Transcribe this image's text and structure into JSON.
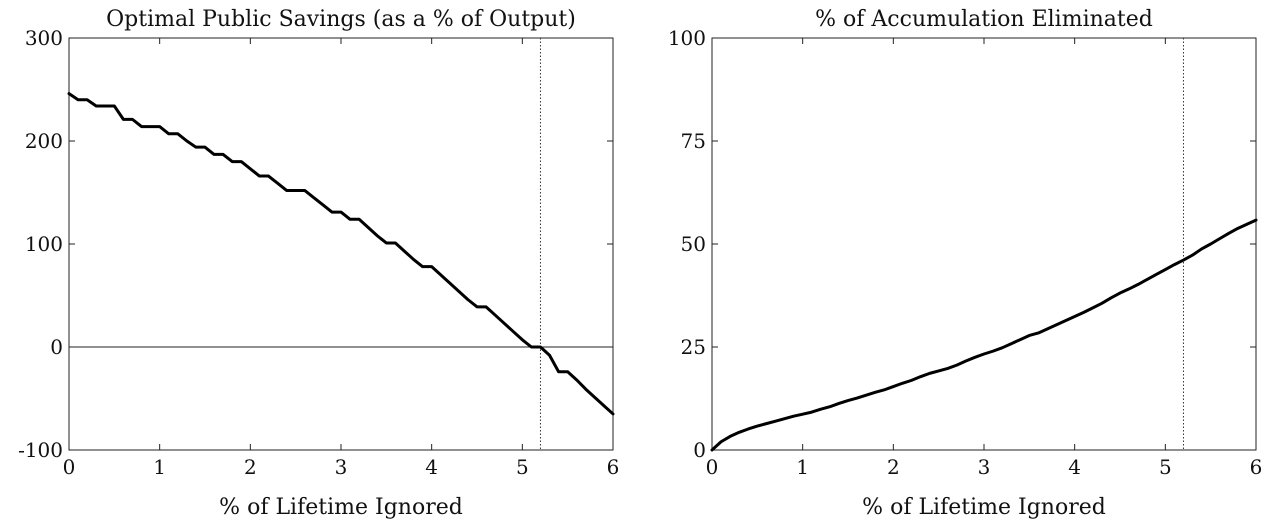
{
  "chart_data": [
    {
      "type": "line",
      "title": "Optimal Public Savings (as a % of Output)",
      "xlabel": "% of Lifetime Ignored",
      "ylabel": "",
      "xlim": [
        0,
        6
      ],
      "ylim": [
        -100,
        300
      ],
      "xticks": [
        0,
        1,
        2,
        3,
        4,
        5,
        6
      ],
      "xtick_labels": [
        "0",
        "1",
        "2",
        "3",
        "4",
        "5",
        "6"
      ],
      "yticks": [
        -100,
        0,
        100,
        200,
        300
      ],
      "ytick_labels": [
        "-100",
        "0",
        "100",
        "200",
        "300"
      ],
      "grid": false,
      "reference_lines": {
        "horizontal_y": 0,
        "vertical_x_dotted": 5.2
      },
      "series": [
        {
          "color": "#000000",
          "x": [
            0,
            0.1,
            0.2,
            0.3,
            0.4,
            0.5,
            0.6,
            0.7,
            0.8,
            0.9,
            1.0,
            1.1,
            1.2,
            1.3,
            1.4,
            1.5,
            1.6,
            1.7,
            1.8,
            1.9,
            2.0,
            2.1,
            2.2,
            2.3,
            2.4,
            2.5,
            2.6,
            2.7,
            2.8,
            2.9,
            3.0,
            3.1,
            3.2,
            3.3,
            3.4,
            3.5,
            3.6,
            3.7,
            3.8,
            3.9,
            4.0,
            4.1,
            4.2,
            4.3,
            4.4,
            4.5,
            4.6,
            4.7,
            4.8,
            4.9,
            5.0,
            5.1,
            5.2,
            5.3,
            5.4,
            5.5,
            5.6,
            5.7,
            5.8,
            5.9,
            6.0
          ],
          "y": [
            246,
            240,
            240,
            234,
            234,
            234,
            221,
            221,
            214,
            214,
            214,
            207,
            207,
            200,
            194,
            194,
            187,
            187,
            180,
            180,
            173,
            166,
            166,
            159,
            152,
            152,
            152,
            145,
            138,
            131,
            131,
            124,
            124,
            116,
            108,
            101,
            101,
            93,
            85,
            78,
            78,
            70,
            62,
            54,
            46,
            39,
            39,
            31,
            23,
            15,
            7,
            0,
            0,
            -8,
            -24,
            -24,
            -32,
            -41,
            -49,
            -57,
            -65
          ]
        }
      ]
    },
    {
      "type": "line",
      "title": "% of Accumulation Eliminated",
      "xlabel": "% of Lifetime Ignored",
      "ylabel": "",
      "xlim": [
        0,
        6
      ],
      "ylim": [
        0,
        100
      ],
      "xticks": [
        0,
        1,
        2,
        3,
        4,
        5,
        6
      ],
      "xtick_labels": [
        "0",
        "1",
        "2",
        "3",
        "4",
        "5",
        "6"
      ],
      "yticks": [
        0,
        25,
        50,
        75,
        100
      ],
      "ytick_labels": [
        "0",
        "25",
        "50",
        "75",
        "100"
      ],
      "grid": false,
      "reference_lines": {
        "vertical_x_dotted": 5.2
      },
      "series": [
        {
          "color": "#000000",
          "x": [
            0,
            0.1,
            0.2,
            0.3,
            0.4,
            0.5,
            0.6,
            0.7,
            0.8,
            0.9,
            1.0,
            1.1,
            1.2,
            1.3,
            1.4,
            1.5,
            1.6,
            1.7,
            1.8,
            1.9,
            2.0,
            2.1,
            2.2,
            2.3,
            2.4,
            2.5,
            2.6,
            2.7,
            2.8,
            2.9,
            3.0,
            3.1,
            3.2,
            3.3,
            3.4,
            3.5,
            3.6,
            3.7,
            3.8,
            3.9,
            4.0,
            4.1,
            4.2,
            4.3,
            4.4,
            4.5,
            4.6,
            4.7,
            4.8,
            4.9,
            5.0,
            5.1,
            5.2,
            5.3,
            5.4,
            5.5,
            5.6,
            5.7,
            5.8,
            5.9,
            6.0
          ],
          "y": [
            0,
            2.0,
            3.3,
            4.3,
            5.1,
            5.8,
            6.4,
            7.0,
            7.6,
            8.2,
            8.7,
            9.2,
            9.9,
            10.5,
            11.3,
            12.0,
            12.6,
            13.3,
            14.0,
            14.6,
            15.4,
            16.2,
            16.9,
            17.8,
            18.6,
            19.2,
            19.8,
            20.6,
            21.6,
            22.5,
            23.3,
            24.0,
            24.8,
            25.8,
            26.8,
            27.8,
            28.4,
            29.4,
            30.4,
            31.4,
            32.4,
            33.4,
            34.5,
            35.6,
            36.9,
            38.1,
            39.1,
            40.2,
            41.4,
            42.6,
            43.8,
            45.0,
            46.1,
            47.3,
            48.8,
            50.0,
            51.3,
            52.6,
            53.8,
            54.8,
            55.8
          ]
        }
      ]
    }
  ]
}
